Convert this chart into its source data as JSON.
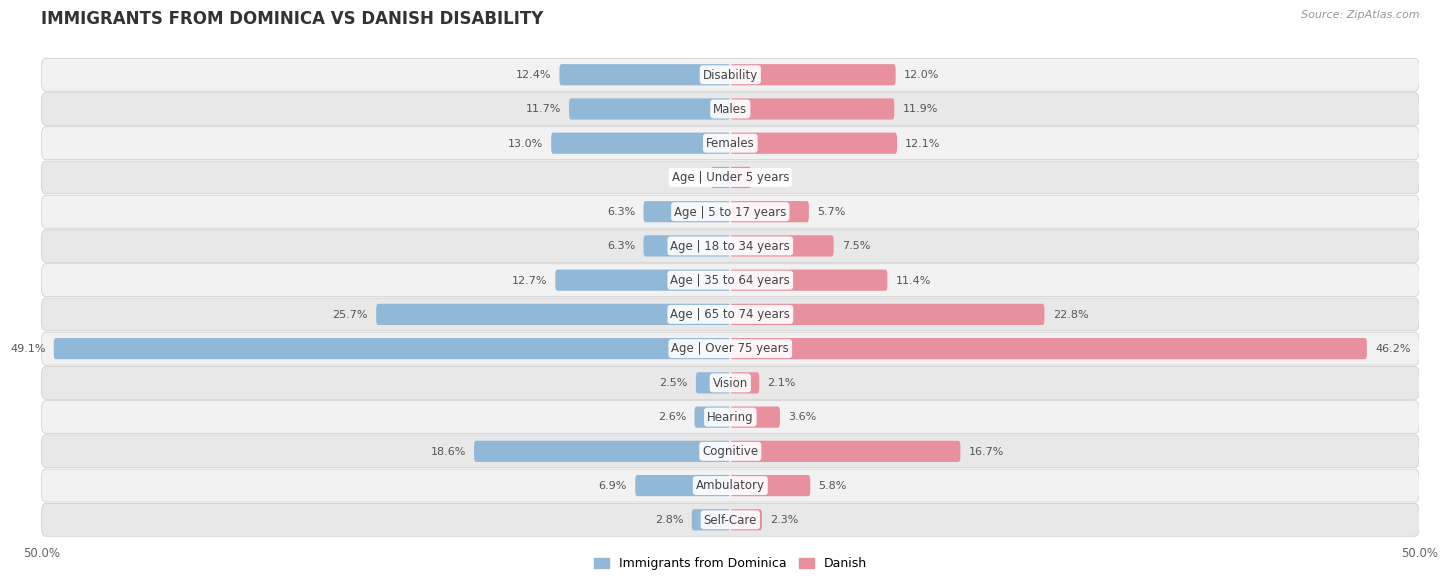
{
  "title": "IMMIGRANTS FROM DOMINICA VS DANISH DISABILITY",
  "source": "Source: ZipAtlas.com",
  "categories": [
    "Disability",
    "Males",
    "Females",
    "Age | Under 5 years",
    "Age | 5 to 17 years",
    "Age | 18 to 34 years",
    "Age | 35 to 64 years",
    "Age | 65 to 74 years",
    "Age | Over 75 years",
    "Vision",
    "Hearing",
    "Cognitive",
    "Ambulatory",
    "Self-Care"
  ],
  "left_values": [
    12.4,
    11.7,
    13.0,
    1.4,
    6.3,
    6.3,
    12.7,
    25.7,
    49.1,
    2.5,
    2.6,
    18.6,
    6.9,
    2.8
  ],
  "right_values": [
    12.0,
    11.9,
    12.1,
    1.5,
    5.7,
    7.5,
    11.4,
    22.8,
    46.2,
    2.1,
    3.6,
    16.7,
    5.8,
    2.3
  ],
  "left_color": "#92b8d8",
  "right_color": "#e8909e",
  "left_label": "Immigrants from Dominica",
  "right_label": "Danish",
  "max_val": 50.0,
  "bar_height": 0.62,
  "row_bg_colors": [
    "#f2f2f2",
    "#e8e8e8"
  ],
  "title_fontsize": 12,
  "label_fontsize": 8.5,
  "value_fontsize": 8,
  "tick_fontsize": 8.5
}
